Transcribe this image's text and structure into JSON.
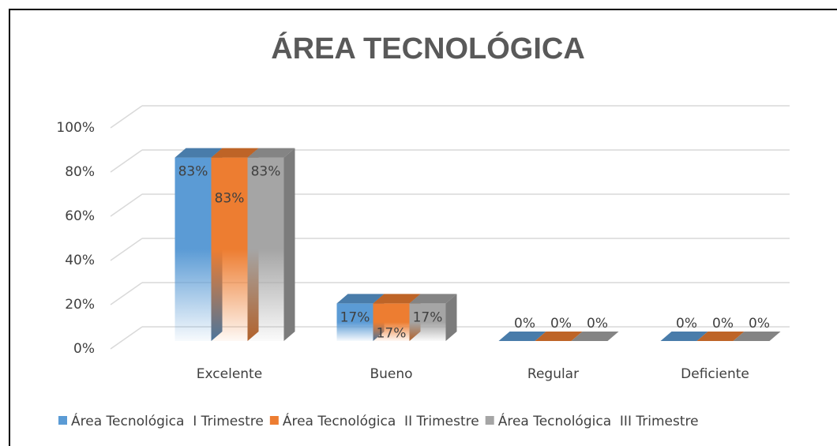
{
  "chart_data": {
    "type": "bar3d",
    "title": "ÁREA TECNOLÓGICA",
    "categories": [
      "Excelente",
      "Bueno",
      "Regular",
      "Deficiente"
    ],
    "series": [
      {
        "name": "Área Tecnológica  I Trimestre",
        "color": "#5b9bd5",
        "values": [
          83,
          17,
          0,
          0
        ],
        "value_labels": [
          "83%",
          "17%",
          "0%",
          "0%"
        ]
      },
      {
        "name": "Área Tecnológica  II Trimestre",
        "color": "#ed7d31",
        "values": [
          83,
          17,
          0,
          0
        ],
        "value_labels": [
          "83%",
          "17%",
          "0%",
          "0%"
        ]
      },
      {
        "name": "Área Tecnológica  III Trimestre",
        "color": "#a5a5a5",
        "values": [
          83,
          17,
          0,
          0
        ],
        "value_labels": [
          "83%",
          "17%",
          "0%",
          "0%"
        ]
      }
    ],
    "ylim": [
      0,
      100
    ],
    "yticks": [
      {
        "value": 0,
        "label": "0%"
      },
      {
        "value": 20,
        "label": "20%"
      },
      {
        "value": 40,
        "label": "40%"
      },
      {
        "value": 60,
        "label": "60%"
      },
      {
        "value": 80,
        "label": "80%"
      },
      {
        "value": 100,
        "label": "100%"
      }
    ],
    "grid": true,
    "legend": "bottom"
  }
}
